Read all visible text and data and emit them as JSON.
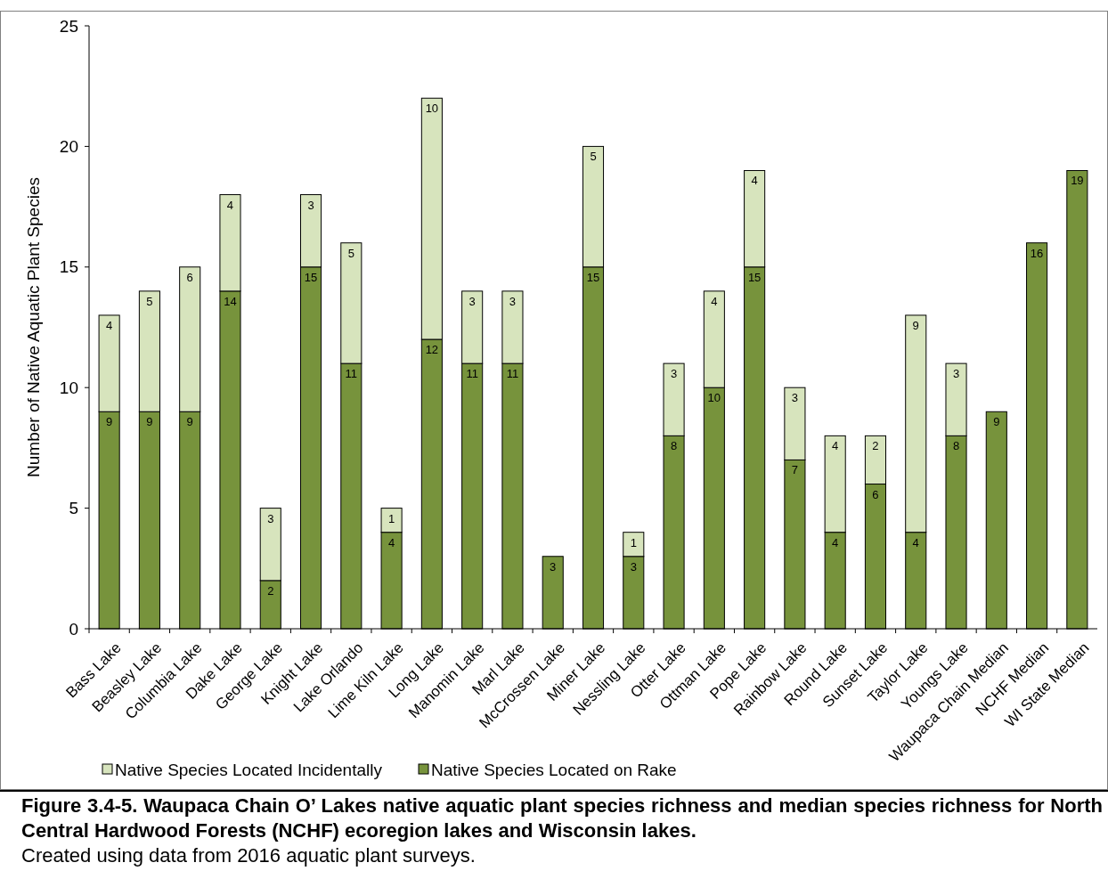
{
  "chart_data": {
    "type": "bar",
    "stacked": true,
    "title": "Figure 3.4-5.  Waupaca Chain O’ Lakes native aquatic plant species richness and median species richness for North Central Hardwood Forests (NCHF) ecoregion lakes and Wisconsin lakes.",
    "annotations": [
      "Created using data from 2016 aquatic plant surveys."
    ],
    "ylabel": "Number of Native Aquatic Plant Species",
    "categories": [
      "Bass Lake",
      "Beasley Lake",
      "Columbia Lake",
      "Dake Lake",
      "George Lake",
      "Knight Lake",
      "Lake Orlando",
      "Lime Kiln Lake",
      "Long Lake",
      "Manomin Lake",
      "Marl Lake",
      "McCrossen Lake",
      "Miner Lake",
      "Nessling Lake",
      "Otter Lake",
      "Ottman Lake",
      "Pope Lake",
      "Rainbow Lake",
      "Round Lake",
      "Sunset Lake",
      "Taylor Lake",
      "Youngs Lake",
      "Waupaca Chain Median",
      "NCHF Median",
      "WI State Median"
    ],
    "series": [
      {
        "name": "Native Species Located on Rake",
        "color": "#77933c",
        "values": [
          9,
          9,
          9,
          14,
          2,
          15,
          11,
          4,
          12,
          11,
          11,
          3,
          15,
          3,
          8,
          10,
          15,
          7,
          4,
          6,
          4,
          8,
          9,
          16,
          19
        ]
      },
      {
        "name": "Native Species Located Incidentally",
        "color": "#d7e4bd",
        "values": [
          4,
          5,
          6,
          4,
          3,
          3,
          5,
          1,
          10,
          3,
          3,
          null,
          5,
          1,
          3,
          4,
          4,
          3,
          4,
          2,
          9,
          3,
          null,
          null,
          null
        ]
      }
    ],
    "ylim": [
      0,
      25
    ],
    "yticks": [
      0,
      5,
      10,
      15,
      20,
      25
    ],
    "grid": false,
    "legend": "bottom left",
    "data_labels": true
  }
}
